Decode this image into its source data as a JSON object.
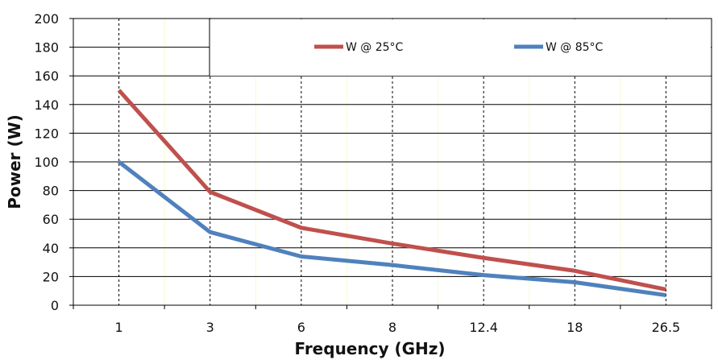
{
  "chart_data": {
    "type": "line",
    "categories": [
      "1",
      "3",
      "6",
      "8",
      "12.4",
      "18",
      "26.5"
    ],
    "series": [
      {
        "name": "W @ 25°C",
        "color": "#c0504d",
        "values": [
          150,
          79,
          54,
          43,
          33,
          24,
          11
        ]
      },
      {
        "name": "W @ 85°C",
        "color": "#4f81bd",
        "values": [
          100,
          51,
          34,
          28,
          21,
          16,
          7
        ]
      }
    ],
    "xlabel": "Frequency (GHz)",
    "ylabel": "Power (W)",
    "ylim": [
      0,
      200
    ],
    "yticks": [
      0,
      20,
      40,
      60,
      80,
      100,
      120,
      140,
      160,
      180,
      200
    ],
    "grid": true,
    "legend": "top-right"
  }
}
